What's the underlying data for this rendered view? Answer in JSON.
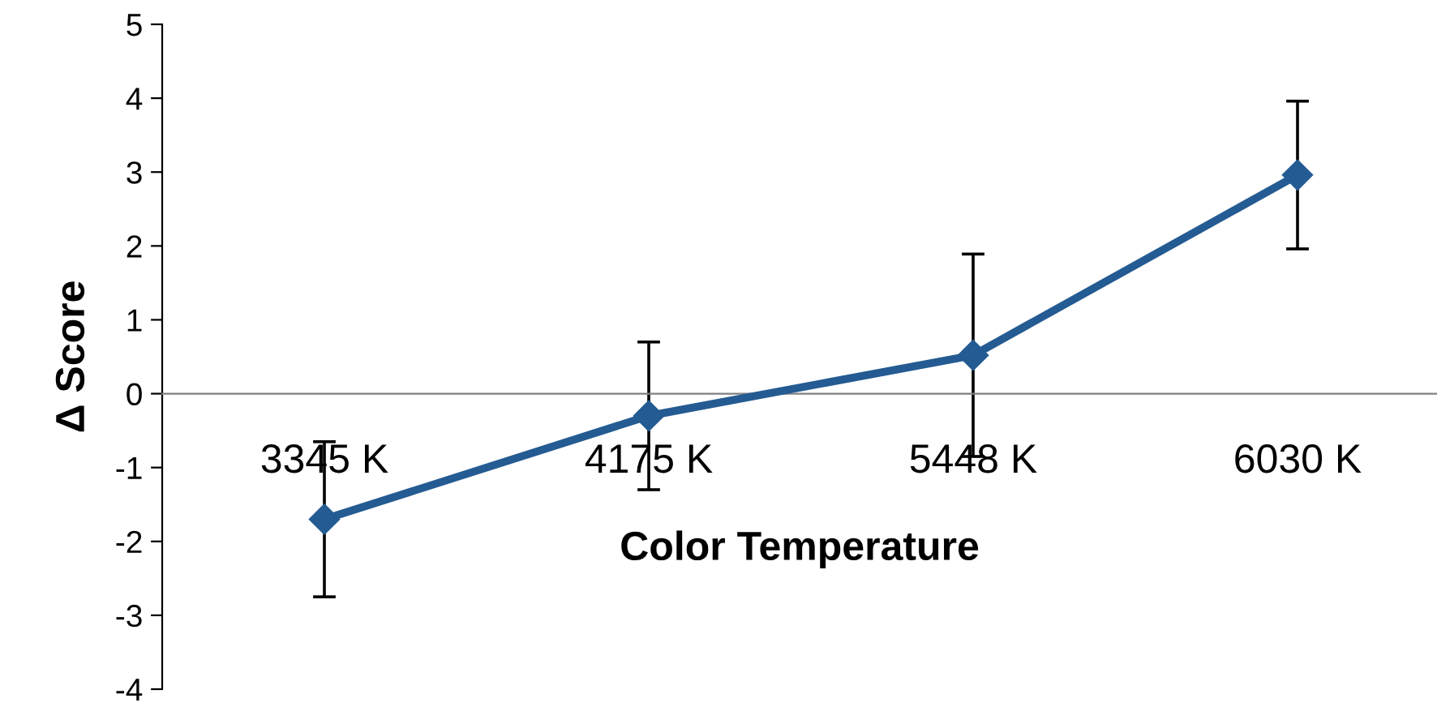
{
  "chart_data": {
    "type": "line",
    "xlabel": "Color Temperature",
    "ylabel": "Δ Score",
    "categories": [
      "3345 K",
      "4175 K",
      "5448 K",
      "6030 K"
    ],
    "series": [
      {
        "color": "#245b92",
        "values": [
          -1.7,
          -0.3,
          0.52,
          2.96
        ],
        "errors": [
          1.05,
          1.0,
          1.37,
          1.0
        ]
      }
    ],
    "ylim": [
      -4,
      5
    ],
    "yticks": [
      -4,
      -3,
      -2,
      -1,
      0,
      1,
      2,
      3,
      4,
      5
    ],
    "grid": false,
    "legend": false,
    "marker": "diamond",
    "line_style": "solid"
  }
}
